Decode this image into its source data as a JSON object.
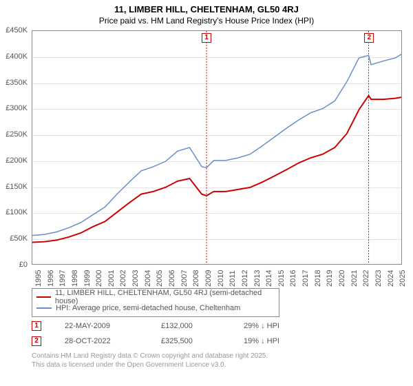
{
  "title": "11, LIMBER HILL, CHELTENHAM, GL50 4RJ",
  "subtitle": "Price paid vs. HM Land Registry's House Price Index (HPI)",
  "chart": {
    "type": "line",
    "background_color": "#ffffff",
    "grid_color": "#e4e4e4",
    "border_color": "#888888",
    "xlim": [
      1995,
      2025.5
    ],
    "ylim": [
      0,
      450000
    ],
    "ytick_step": 50000,
    "ytick_labels": [
      "£0",
      "£50K",
      "£100K",
      "£150K",
      "£200K",
      "£250K",
      "£300K",
      "£350K",
      "£400K",
      "£450K"
    ],
    "xticks": [
      1995,
      1996,
      1997,
      1998,
      1999,
      2000,
      2001,
      2002,
      2003,
      2004,
      2005,
      2006,
      2007,
      2008,
      2009,
      2010,
      2011,
      2012,
      2013,
      2014,
      2015,
      2016,
      2017,
      2018,
      2019,
      2020,
      2021,
      2022,
      2023,
      2024,
      2025
    ],
    "series": [
      {
        "name": "price_paid",
        "label": "11, LIMBER HILL, CHELTENHAM, GL50 4RJ (semi-detached house)",
        "color": "#cb0000",
        "line_width": 2,
        "x": [
          1995,
          1996,
          1997,
          1998,
          1999,
          2000,
          2001,
          2002,
          2003,
          2004,
          2005,
          2006,
          2007,
          2008,
          2009,
          2009.4,
          2010,
          2011,
          2012,
          2013,
          2014,
          2015,
          2016,
          2017,
          2018,
          2019,
          2020,
          2021,
          2022,
          2022.8,
          2023,
          2024,
          2025,
          2025.5
        ],
        "y": [
          42000,
          43000,
          46000,
          52000,
          60000,
          72000,
          82000,
          100000,
          118000,
          135000,
          140000,
          148000,
          160000,
          165000,
          135000,
          132000,
          140000,
          140000,
          144000,
          148000,
          158000,
          170000,
          182000,
          195000,
          205000,
          212000,
          225000,
          252000,
          298000,
          325500,
          318000,
          318000,
          320000,
          322000
        ]
      },
      {
        "name": "hpi",
        "label": "HPI: Average price, semi-detached house, Cheltenham",
        "color": "#6a8fc4",
        "line_width": 1.5,
        "x": [
          1995,
          1996,
          1997,
          1998,
          1999,
          2000,
          2001,
          2002,
          2003,
          2004,
          2005,
          2006,
          2007,
          2008,
          2009,
          2009.4,
          2010,
          2011,
          2012,
          2013,
          2014,
          2015,
          2016,
          2017,
          2018,
          2019,
          2020,
          2021,
          2022,
          2022.8,
          2023,
          2024,
          2025,
          2025.5
        ],
        "y": [
          55000,
          57000,
          62000,
          70000,
          80000,
          95000,
          110000,
          135000,
          158000,
          180000,
          188000,
          198000,
          218000,
          225000,
          188000,
          186000,
          200000,
          200000,
          205000,
          212000,
          228000,
          245000,
          262000,
          278000,
          292000,
          300000,
          315000,
          352000,
          398000,
          403000,
          385000,
          392000,
          398000,
          405000
        ]
      }
    ],
    "markers": [
      {
        "n": "1",
        "x": 2009.4,
        "color": "#cb0000"
      },
      {
        "n": "2",
        "x": 2022.8,
        "color": "#cb0000"
      }
    ]
  },
  "legend": {
    "items": [
      {
        "color": "#cb0000",
        "label": "11, LIMBER HILL, CHELTENHAM, GL50 4RJ (semi-detached house)"
      },
      {
        "color": "#6a8fc4",
        "label": "HPI: Average price, semi-detached house, Cheltenham"
      }
    ]
  },
  "datapoints": [
    {
      "n": "1",
      "color": "#cb0000",
      "date": "22-MAY-2009",
      "price": "£132,000",
      "diff": "29% ↓ HPI"
    },
    {
      "n": "2",
      "color": "#cb0000",
      "date": "28-OCT-2022",
      "price": "£325,500",
      "diff": "19% ↓ HPI"
    }
  ],
  "attribution": {
    "line1": "Contains HM Land Registry data © Crown copyright and database right 2025.",
    "line2": "This data is licensed under the Open Government Licence v3.0."
  }
}
